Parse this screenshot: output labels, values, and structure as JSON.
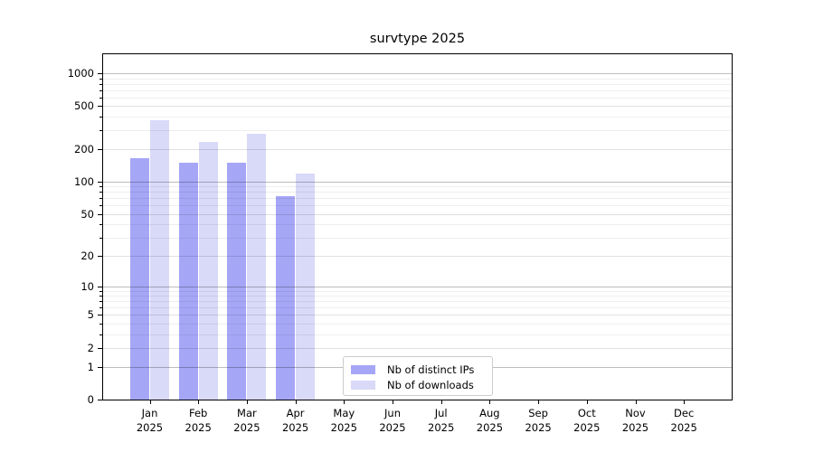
{
  "chart_data": {
    "type": "bar",
    "title": "survtype 2025",
    "categories": [
      "Jan",
      "Feb",
      "Mar",
      "Apr",
      "May",
      "Jun",
      "Jul",
      "Aug",
      "Sep",
      "Oct",
      "Nov",
      "Dec"
    ],
    "year_label": "2025",
    "series": [
      {
        "name": "Nb of distinct IPs",
        "color": "#a6a6f7",
        "values": [
          166,
          150,
          150,
          73,
          0,
          0,
          0,
          0,
          0,
          0,
          0,
          0
        ]
      },
      {
        "name": "Nb of downloads",
        "color": "#d9d9f8",
        "values": [
          370,
          235,
          280,
          119,
          0,
          0,
          0,
          0,
          0,
          0,
          0,
          0
        ]
      }
    ],
    "yticks": [
      0,
      1,
      2,
      5,
      10,
      20,
      50,
      100,
      200,
      500,
      1000
    ],
    "ylim": [
      0,
      1500
    ],
    "yscale": "log1p",
    "grid": true,
    "legend_position": "bottom-center"
  }
}
